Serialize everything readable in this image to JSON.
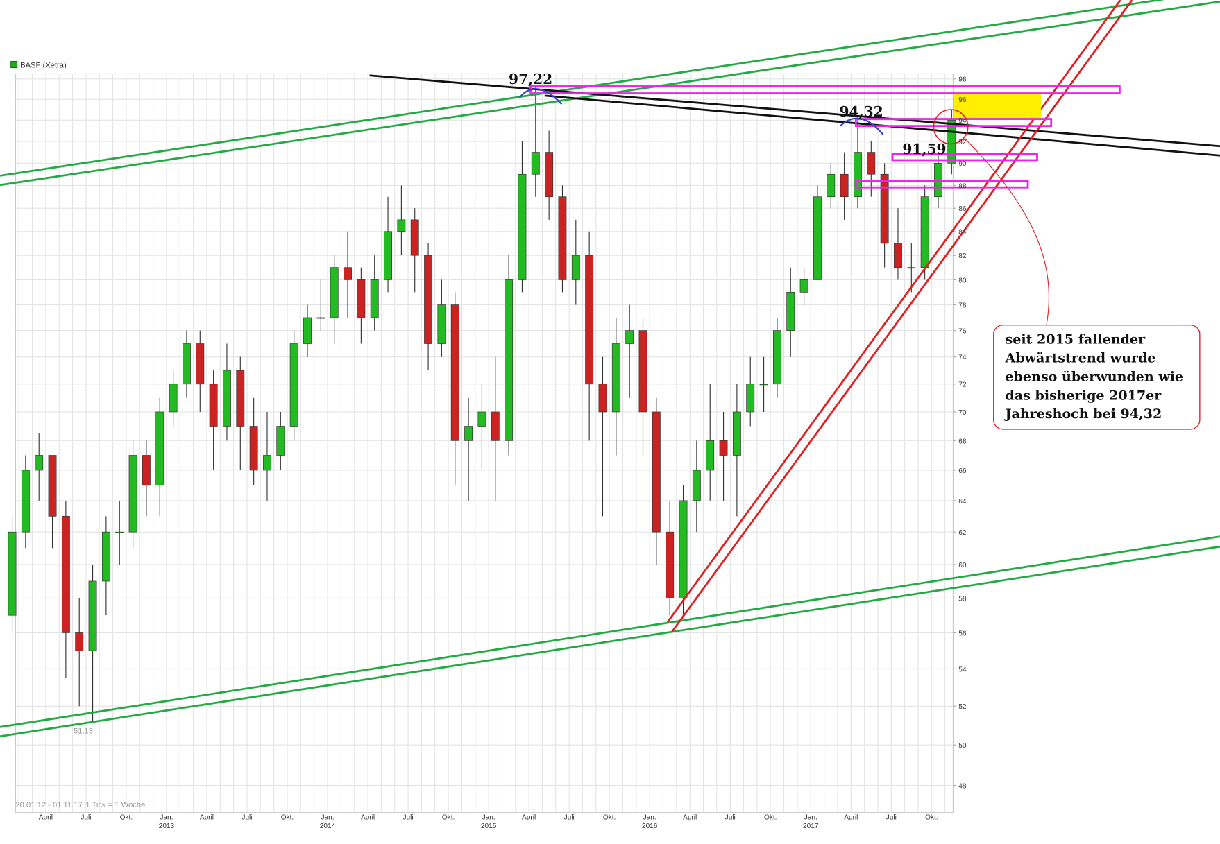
{
  "chart_data": {
    "type": "candlestick",
    "title": "BASF (Xetra)",
    "period": "20.01.12 - 01.11.17",
    "tick_note": "1 Tick = 1 Woche",
    "log_scale": true,
    "grid": true,
    "ylim": [
      46.7,
      98.5
    ],
    "yticks": [
      48,
      50,
      52,
      54,
      56,
      58,
      60,
      62,
      64,
      66,
      68,
      70,
      72,
      74,
      76,
      78,
      80,
      82,
      84,
      86,
      88,
      90,
      92,
      94,
      96,
      98
    ],
    "categories": [
      null,
      null,
      null,
      "April",
      null,
      null,
      "Juli",
      null,
      null,
      "Okt.",
      null,
      null,
      "Jan.",
      null,
      null,
      "April",
      null,
      null,
      "Juli",
      null,
      null,
      "Okt.",
      null,
      null,
      "Jan.",
      null,
      null,
      "April",
      null,
      null,
      "Juli",
      null,
      null,
      "Okt.",
      null,
      null,
      "Jan.",
      null,
      null,
      "April",
      null,
      null,
      "Juli",
      null,
      null,
      "Okt.",
      null,
      null,
      "Jan.",
      null,
      null,
      "April",
      null,
      null,
      "Juli",
      null,
      null,
      "Okt.",
      null,
      null,
      "Jan.",
      null,
      null,
      "April",
      null,
      null,
      "Juli",
      null,
      null,
      "Okt.",
      null
    ],
    "year_labels": [
      null,
      null,
      null,
      null,
      null,
      null,
      null,
      null,
      null,
      null,
      null,
      null,
      "2013",
      null,
      null,
      null,
      null,
      null,
      null,
      null,
      null,
      null,
      null,
      null,
      "2014",
      null,
      null,
      null,
      null,
      null,
      null,
      null,
      null,
      null,
      null,
      null,
      "2015",
      null,
      null,
      null,
      null,
      null,
      null,
      null,
      null,
      null,
      null,
      null,
      "2016",
      null,
      null,
      null,
      null,
      null,
      null,
      null,
      null,
      null,
      null,
      null,
      "2017",
      null,
      null,
      null,
      null,
      null,
      null,
      null,
      null,
      null,
      null
    ],
    "up_color": "#22bb22",
    "down_color": "#cc2222",
    "series": [
      {
        "name": "BASF (Xetra)",
        "color": "#22aa22",
        "open": [
          57,
          62,
          66,
          67,
          63,
          56,
          55,
          59,
          62,
          62,
          67,
          65,
          70,
          72,
          75,
          72,
          69,
          73,
          69,
          66,
          67,
          69,
          75,
          77,
          77,
          81,
          80,
          77,
          80,
          84,
          85,
          82,
          75,
          78,
          68,
          69,
          70,
          68,
          80,
          89,
          91,
          87,
          80,
          82,
          72,
          70,
          75,
          76,
          70,
          62,
          58,
          64,
          66,
          68,
          67,
          70,
          72,
          72,
          76,
          79,
          80,
          87,
          89,
          87,
          91,
          89,
          83,
          81,
          81,
          87,
          90
        ],
        "high": [
          63,
          67,
          68.5,
          67,
          64,
          58,
          60,
          63,
          64,
          68,
          68,
          71,
          73,
          76,
          76,
          73,
          75,
          74,
          71,
          70,
          70,
          76,
          78,
          80,
          82,
          84,
          81,
          82,
          87,
          88,
          86,
          83,
          80,
          79,
          71,
          72,
          74,
          82,
          92,
          97.22,
          93,
          88,
          85,
          84,
          74,
          77,
          78,
          77,
          71,
          64,
          65,
          68,
          72,
          70,
          72,
          74,
          74,
          77,
          81,
          81,
          88,
          90,
          91,
          94.32,
          92,
          90,
          86,
          83,
          88,
          91,
          95
        ],
        "low": [
          56,
          61,
          64,
          61,
          53.5,
          52,
          51.13,
          57,
          60,
          61,
          63,
          63,
          69,
          71,
          70,
          66,
          68,
          66,
          65,
          64,
          66,
          68,
          74,
          76,
          75,
          77,
          75,
          76,
          79,
          82,
          79,
          73,
          74,
          65,
          64,
          66,
          64,
          67,
          79,
          87,
          85,
          79,
          78,
          68,
          63,
          67,
          71,
          67,
          60,
          57,
          57,
          62,
          64,
          64,
          63,
          69,
          70,
          71,
          74,
          78,
          80,
          86,
          85,
          86,
          87,
          81,
          80,
          79,
          80,
          86,
          89
        ],
        "close": [
          62,
          66,
          67,
          63,
          56,
          55,
          59,
          62,
          62,
          67,
          65,
          70,
          72,
          75,
          72,
          69,
          73,
          69,
          66,
          67,
          69,
          75,
          77,
          77,
          81,
          80,
          77,
          80,
          84,
          85,
          82,
          75,
          78,
          68,
          69,
          70,
          68,
          80,
          89,
          91,
          87,
          80,
          82,
          72,
          70,
          75,
          76,
          70,
          62,
          58,
          64,
          66,
          68,
          67,
          70,
          72,
          72,
          76,
          79,
          80,
          87,
          89,
          87,
          91,
          89,
          83,
          81,
          81,
          87,
          90,
          94
        ]
      }
    ],
    "annotations": [
      "97,22",
      "94,32",
      "91,59",
      "51,13"
    ],
    "callout": [
      "seit 2015 fallender",
      "Abwärtstrend wurde",
      "ebenso überwunden wie",
      "das bisherige 2017er",
      "Jahreshoch bei 94,32"
    ]
  }
}
